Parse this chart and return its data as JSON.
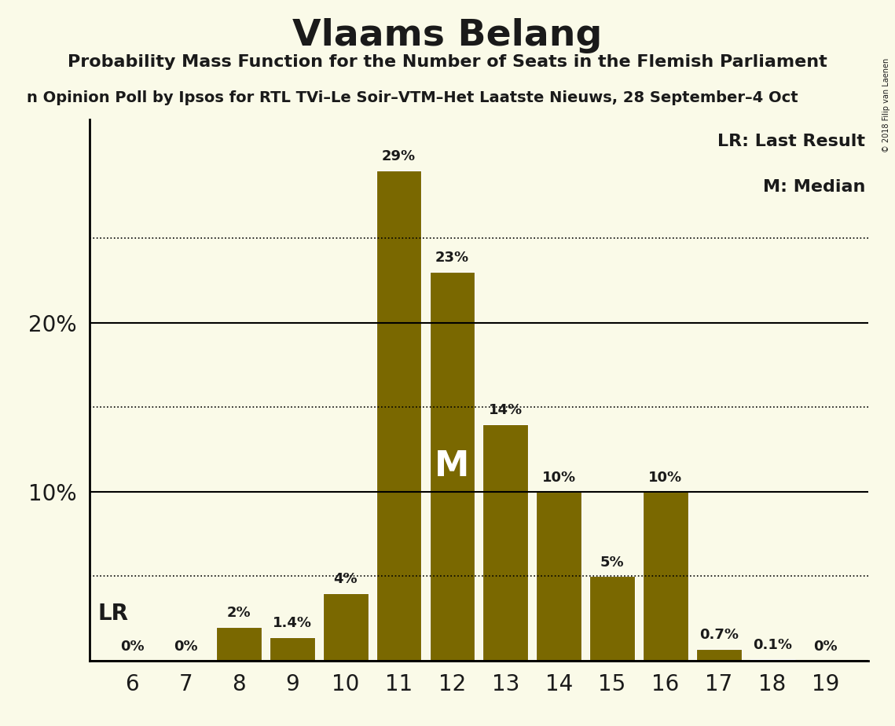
{
  "title": "Vlaams Belang",
  "subtitle": "Probability Mass Function for the Number of Seats in the Flemish Parliament",
  "sub_subtitle": "n Opinion Poll by Ipsos for RTL TVi–Le Soir–VTM–Het Laatste Nieuws, 28 September–4 Oct",
  "copyright": "© 2018 Filip van Laenen",
  "seats": [
    6,
    7,
    8,
    9,
    10,
    11,
    12,
    13,
    14,
    15,
    16,
    17,
    18,
    19
  ],
  "probabilities": [
    0.0,
    0.0,
    2.0,
    1.4,
    4.0,
    29.0,
    23.0,
    14.0,
    10.0,
    5.0,
    10.0,
    0.7,
    0.1,
    0.0
  ],
  "bar_color": "#7A6800",
  "background_color": "#FAFAE8",
  "text_color": "#1a1a1a",
  "lr_seat": 8,
  "median_seat": 12,
  "median_label_color": "#FFFFFF",
  "ylim": [
    0,
    32
  ],
  "ytick_labels": [
    "10%",
    "20%"
  ],
  "ytick_values": [
    10,
    20
  ],
  "dotted_yticks": [
    5,
    15,
    25
  ],
  "solid_yticks": [
    0,
    10,
    20
  ],
  "legend_lr": "LR: Last Result",
  "legend_m": "M: Median",
  "title_fontsize": 34,
  "subtitle_fontsize": 16,
  "sub_subtitle_fontsize": 14,
  "bar_label_fontsize": 13,
  "axis_label_fontsize": 20,
  "legend_fontsize": 16,
  "lr_fontsize": 20,
  "median_fontsize": 32
}
